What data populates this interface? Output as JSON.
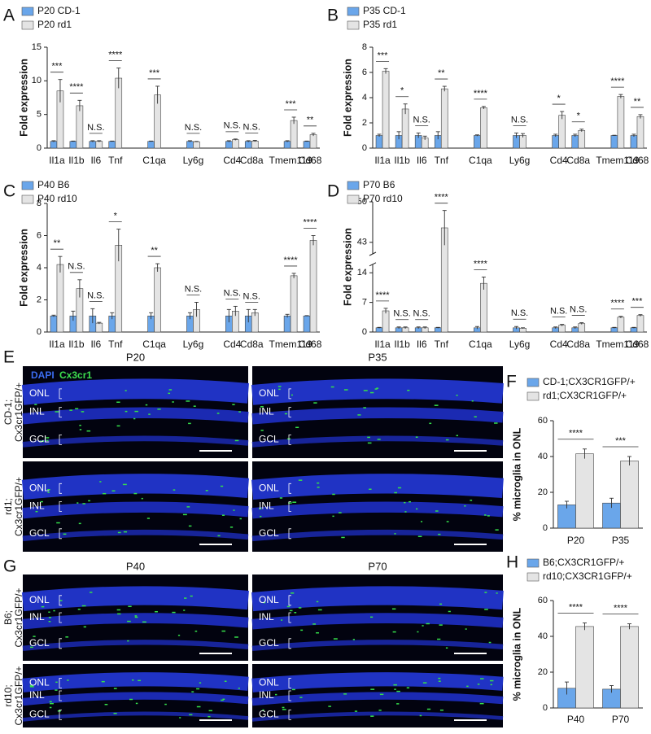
{
  "chart_data": [
    {
      "type": "bar",
      "panel": "A",
      "ylabel": "Fold expression",
      "categories": [
        "Il1a",
        "Il1b",
        "Il6",
        "Tnf",
        "C1qa",
        "Ly6g",
        "Cd4",
        "Cd8a",
        "Tmem119",
        "Cd68"
      ],
      "series": [
        {
          "name": "P20 CD-1",
          "color": "#6aa6ea",
          "values": [
            1,
            1,
            1,
            1,
            1,
            1,
            1,
            1,
            1,
            1
          ],
          "errors": [
            0.1,
            0.05,
            0.1,
            0.05,
            0.05,
            0.1,
            0.1,
            0.1,
            0.1,
            0.05
          ]
        },
        {
          "name": "P20 rd1",
          "color": "#e4e4e4",
          "values": [
            8.5,
            6.3,
            1.0,
            10.4,
            7.9,
            0.95,
            1.25,
            1.05,
            4.1,
            2.0
          ],
          "errors": [
            1.7,
            0.8,
            0.1,
            1.5,
            1.3,
            0.05,
            0.1,
            0.1,
            0.5,
            0.2
          ]
        }
      ],
      "significance": [
        "***",
        "****",
        "N.S.",
        "****",
        "***",
        "N.S.",
        "N.S.",
        "N.S.",
        "***",
        "**"
      ],
      "ylim": [
        0,
        15
      ],
      "yticks": [
        0,
        5,
        10,
        15
      ]
    },
    {
      "type": "bar",
      "panel": "B",
      "ylabel": "Fold expression",
      "categories": [
        "Il1a",
        "Il1b",
        "Il6",
        "Tnf",
        "C1qa",
        "Ly6g",
        "Cd4",
        "Cd8a",
        "Tmem119",
        "Cd68"
      ],
      "series": [
        {
          "name": "P35 CD-1",
          "color": "#6aa6ea",
          "values": [
            1,
            1,
            1,
            1,
            1,
            1,
            1,
            1,
            1,
            1
          ],
          "errors": [
            0.1,
            0.3,
            0.2,
            0.3,
            0.05,
            0.2,
            0.1,
            0.1,
            0.02,
            0.1
          ]
        },
        {
          "name": "P35 rd1",
          "color": "#e4e4e4",
          "values": [
            6.1,
            3.1,
            0.8,
            4.7,
            3.2,
            1.0,
            2.6,
            1.4,
            4.1,
            2.5
          ],
          "errors": [
            0.2,
            0.4,
            0.15,
            0.2,
            0.1,
            0.15,
            0.3,
            0.1,
            0.15,
            0.15
          ]
        }
      ],
      "significance": [
        "***",
        "*",
        "N.S.",
        "**",
        "****",
        "N.S.",
        "*",
        "*",
        "****",
        "**"
      ],
      "ylim": [
        0,
        8
      ],
      "yticks": [
        0,
        2,
        4,
        6,
        8
      ]
    },
    {
      "type": "bar",
      "panel": "C",
      "ylabel": "Fold expression",
      "categories": [
        "Il1a",
        "Il1b",
        "Il6",
        "Tnf",
        "C1qa",
        "Ly6g",
        "Cd4",
        "Cd8a",
        "Tmem119",
        "Cd68"
      ],
      "series": [
        {
          "name": "P40 B6",
          "color": "#6aa6ea",
          "values": [
            1,
            1,
            1,
            1,
            1,
            1,
            1,
            1,
            1,
            1
          ],
          "errors": [
            0.05,
            0.3,
            0.45,
            0.2,
            0.2,
            0.2,
            0.4,
            0.4,
            0.1,
            0.02
          ]
        },
        {
          "name": "P40 rd10",
          "color": "#e4e4e4",
          "values": [
            4.2,
            2.7,
            0.55,
            5.4,
            4.0,
            1.4,
            1.3,
            1.2,
            3.5,
            5.7
          ],
          "errors": [
            0.5,
            0.55,
            0.05,
            1.0,
            0.25,
            0.45,
            0.3,
            0.2,
            0.15,
            0.3
          ]
        }
      ],
      "significance": [
        "**",
        "N.S.",
        "N.S.",
        "*",
        "**",
        "N.S.",
        "N.S.",
        "N.S.",
        "****",
        "****"
      ],
      "ylim": [
        0,
        8
      ],
      "yticks": [
        0,
        2,
        4,
        6,
        8
      ]
    },
    {
      "type": "bar",
      "panel": "D",
      "ylabel": "Fold expression",
      "categories": [
        "Il1a",
        "Il1b",
        "Il6",
        "Tnf",
        "C1qa",
        "Ly6g",
        "Cd4",
        "Cd8a",
        "Tmem119",
        "Cd68"
      ],
      "series": [
        {
          "name": "P70 B6",
          "color": "#6aa6ea",
          "values": [
            1,
            1,
            1,
            1,
            1,
            1,
            1,
            1,
            1,
            1
          ],
          "errors": [
            0.1,
            0.2,
            0.2,
            0.1,
            0.3,
            0.3,
            0.2,
            0.2,
            0.1,
            0.1
          ]
        },
        {
          "name": "P70 rd10",
          "color": "#e4e4e4",
          "values": [
            5.0,
            1.0,
            1.0,
            45.5,
            11.5,
            0.9,
            1.6,
            2.0,
            3.5,
            3.9
          ],
          "errors": [
            0.6,
            0.2,
            0.2,
            3.0,
            1.5,
            0.1,
            0.2,
            0.2,
            0.2,
            0.2
          ]
        }
      ],
      "significance": [
        "****",
        "N.S.",
        "N.S.",
        "****",
        "****",
        "N.S.",
        "N.S.",
        "N.S.",
        "****",
        "***"
      ],
      "ylim": [
        0,
        50
      ],
      "yticks": [
        0,
        7,
        14,
        43,
        50
      ],
      "ybreak": [
        16,
        41
      ]
    },
    {
      "type": "bar",
      "panel": "F",
      "ylabel": "% microglia in ONL",
      "categories": [
        "P20",
        "P35"
      ],
      "series": [
        {
          "name": "CD-1;CX3CR1GFP/+",
          "color": "#6aa6ea",
          "values": [
            13,
            14
          ],
          "errors": [
            2,
            2.7
          ]
        },
        {
          "name": "rd1;CX3CR1GFP/+",
          "color": "#e4e4e4",
          "values": [
            41.5,
            37.5
          ],
          "errors": [
            2.7,
            2.5
          ]
        }
      ],
      "significance": [
        "****",
        "***"
      ],
      "ylim": [
        0,
        60
      ],
      "yticks": [
        0,
        20,
        40,
        60
      ]
    },
    {
      "type": "bar",
      "panel": "H",
      "ylabel": "% microglia in ONL",
      "categories": [
        "P40",
        "P70"
      ],
      "series": [
        {
          "name": "B6;CX3CR1GFP/+",
          "color": "#6aa6ea",
          "values": [
            11,
            10.5
          ],
          "errors": [
            3.5,
            2
          ]
        },
        {
          "name": "rd10;CX3CR1GFP/+",
          "color": "#e4e4e4",
          "values": [
            45.5,
            45.5
          ],
          "errors": [
            2,
            1.5
          ]
        }
      ],
      "significance": [
        "****",
        "****"
      ],
      "ylim": [
        0,
        60
      ],
      "yticks": [
        0,
        20,
        40,
        60
      ]
    }
  ],
  "images": [
    {
      "panel": "E",
      "legend": [
        "DAPI",
        "Cx3cr1"
      ],
      "columns": [
        "P20",
        "P35"
      ],
      "rows": [
        [
          "CD-1;",
          "Cx3cr1GFP/+"
        ],
        [
          "rd1;",
          "Cx3cr1GFP/+"
        ]
      ],
      "layers": [
        "ONL",
        "INL",
        "GCL"
      ]
    },
    {
      "panel": "G",
      "columns": [
        "P40",
        "P70"
      ],
      "rows": [
        [
          "B6;",
          "Cx3cr1GFP/+"
        ],
        [
          "rd10;",
          "Cx3cr1GFP/+"
        ]
      ],
      "layers": [
        "ONL",
        "INL",
        "GCL"
      ]
    }
  ]
}
